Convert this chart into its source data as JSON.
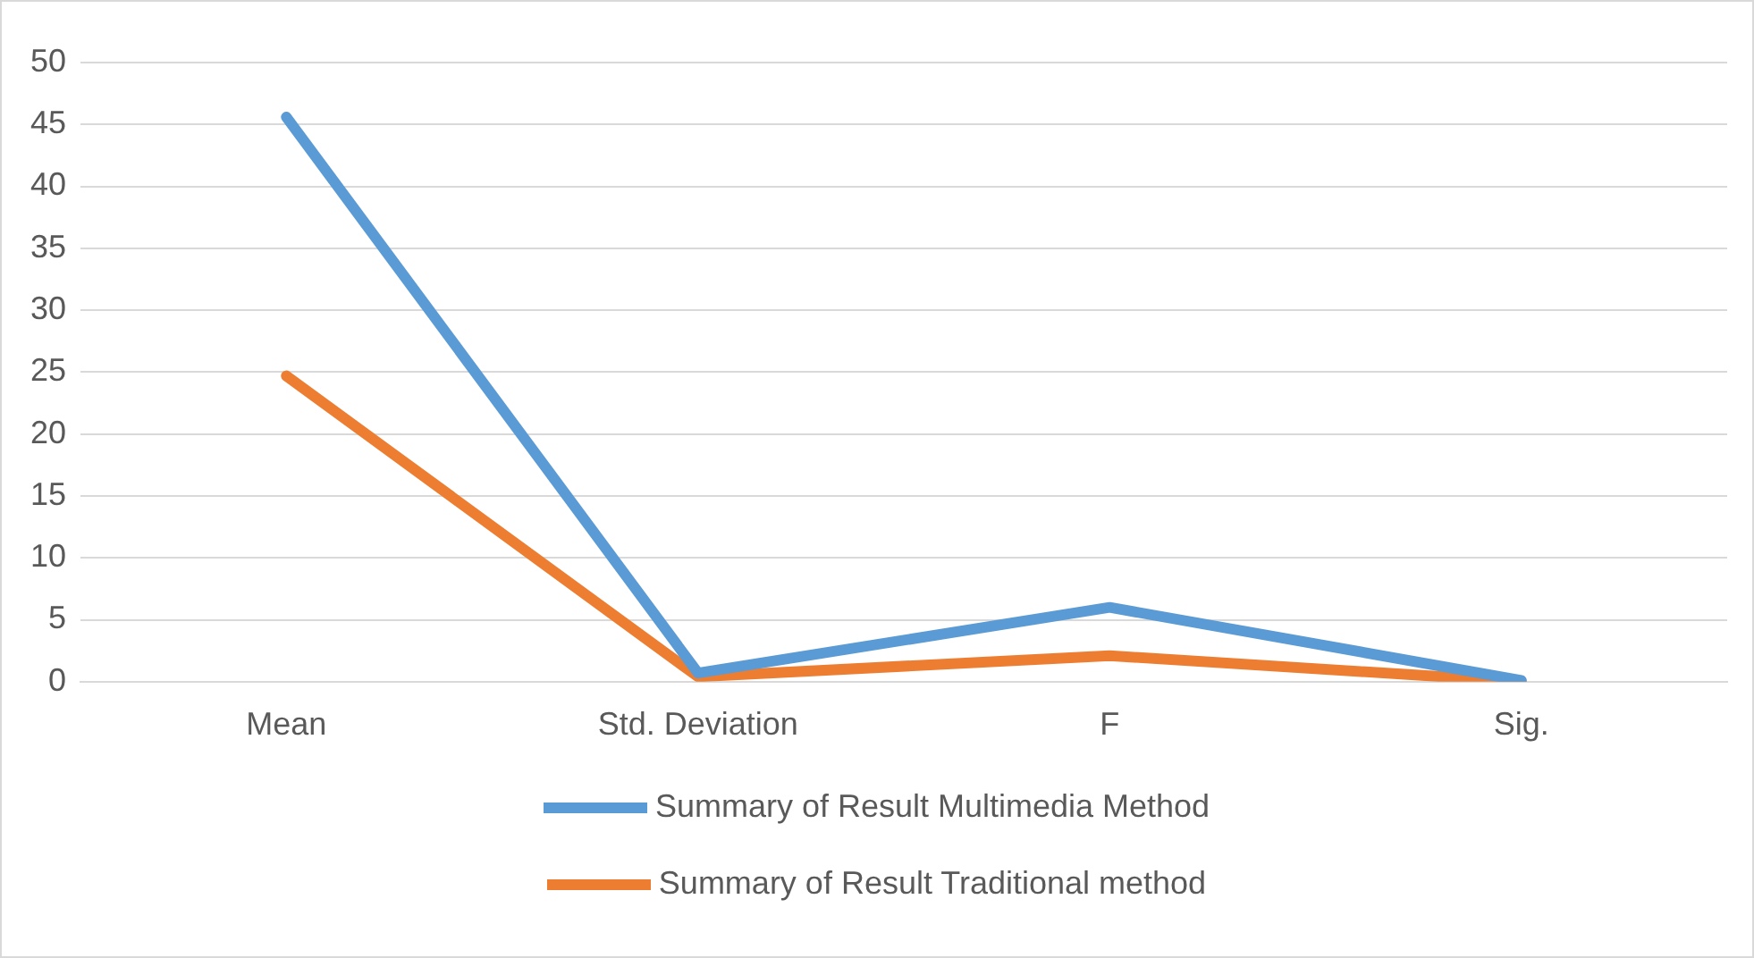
{
  "chart_data": {
    "type": "line",
    "categories": [
      "Mean",
      "Std. Deviation",
      "F",
      "Sig."
    ],
    "series": [
      {
        "name": "Summary of Result Multimedia Method",
        "color": "#5b9bd5",
        "values": [
          45.6,
          0.7,
          6,
          0.1
        ]
      },
      {
        "name": "Summary of Result Traditional method",
        "color": "#ed7d31",
        "values": [
          24.7,
          0.4,
          2.1,
          0
        ]
      }
    ],
    "ylim": [
      0,
      50
    ],
    "yticks": [
      0,
      5,
      10,
      15,
      20,
      25,
      30,
      35,
      40,
      45,
      50
    ],
    "grid": "y",
    "legend": "bottom",
    "marker": "none",
    "line_style": "solid"
  }
}
